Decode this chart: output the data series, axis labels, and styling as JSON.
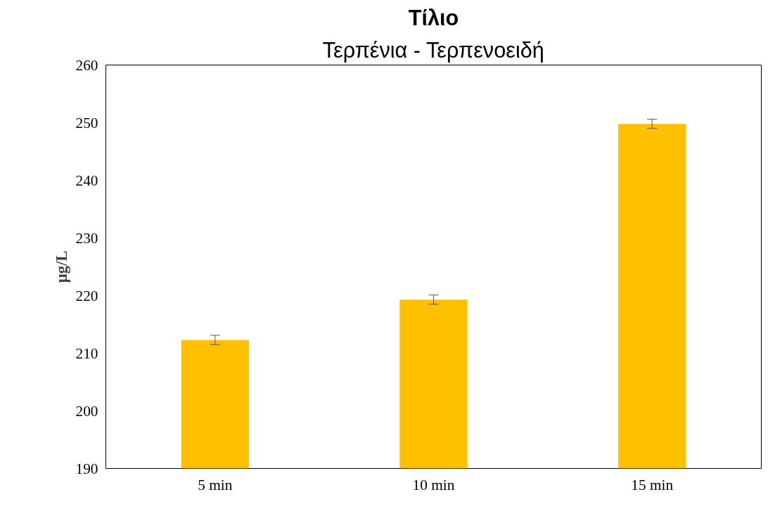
{
  "chart_data": {
    "type": "bar",
    "title": "Τίλιο",
    "subtitle": "Τερπένια - Τερπενοειδή",
    "ylabel": "μg/L",
    "categories": [
      "5 min",
      "10 min",
      "15 min"
    ],
    "values": [
      212.3,
      219.3,
      249.8
    ],
    "errors": [
      0.8,
      0.8,
      0.8
    ],
    "color": "#ffc000",
    "ylim": [
      190,
      260
    ],
    "yticks": [
      190,
      200,
      210,
      220,
      230,
      240,
      250,
      260
    ],
    "grid": false
  }
}
